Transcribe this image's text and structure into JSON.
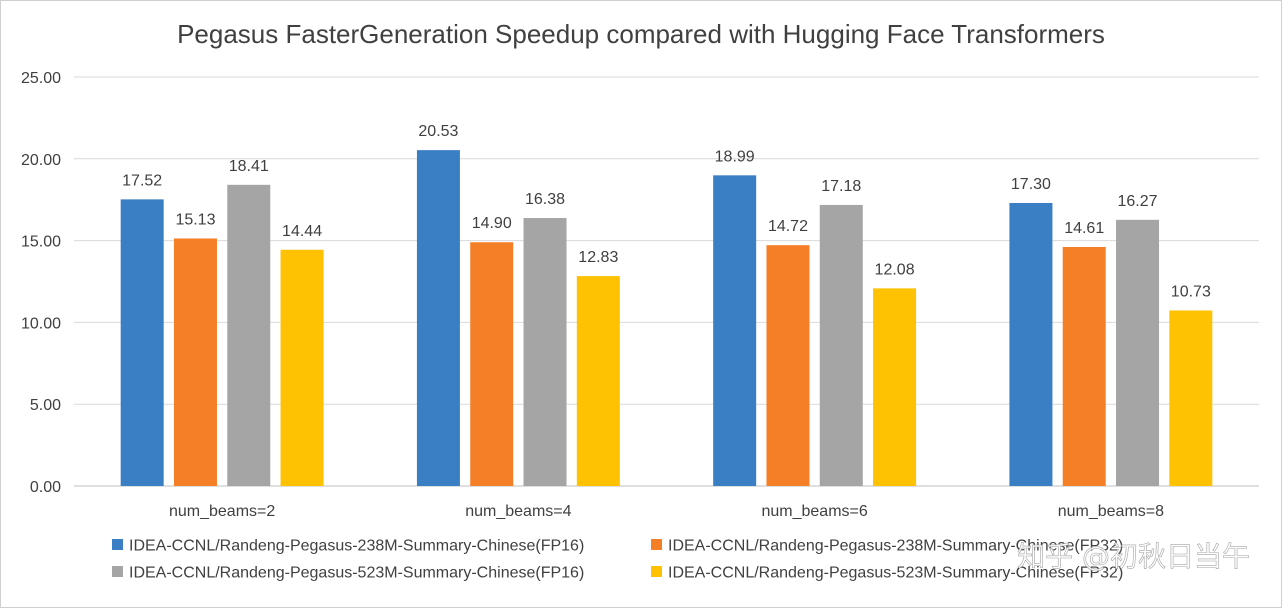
{
  "chart_data": {
    "type": "bar",
    "title": "Pegasus FasterGeneration Speedup compared with Hugging Face Transformers",
    "xlabel": "",
    "ylabel": "",
    "ylim": [
      0,
      25
    ],
    "yticks": [
      "0.00",
      "5.00",
      "10.00",
      "15.00",
      "20.00",
      "25.00"
    ],
    "grid": true,
    "legend_position": "bottom",
    "categories": [
      "num_beams=2",
      "num_beams=4",
      "num_beams=6",
      "num_beams=8"
    ],
    "series": [
      {
        "name": "IDEA-CCNL/Randeng-Pegasus-238M-Summary-Chinese(FP16)",
        "color": "#3a7fc4",
        "values": [
          17.52,
          20.53,
          18.99,
          17.3
        ],
        "labels": [
          "17.52",
          "20.53",
          "18.99",
          "17.30"
        ]
      },
      {
        "name": "IDEA-CCNL/Randeng-Pegasus-238M-Summary-Chinese(FP32)",
        "color": "#f57f26",
        "values": [
          15.13,
          14.9,
          14.72,
          14.61
        ],
        "labels": [
          "15.13",
          "14.90",
          "14.72",
          "14.61"
        ]
      },
      {
        "name": "IDEA-CCNL/Randeng-Pegasus-523M-Summary-Chinese(FP16)",
        "color": "#a5a5a5",
        "values": [
          18.41,
          16.38,
          17.18,
          16.27
        ],
        "labels": [
          "18.41",
          "16.38",
          "17.18",
          "16.27"
        ]
      },
      {
        "name": "IDEA-CCNL/Randeng-Pegasus-523M-Summary-Chinese(FP32)",
        "color": "#fec202",
        "values": [
          14.44,
          12.83,
          12.08,
          10.73
        ],
        "labels": [
          "14.44",
          "12.83",
          "12.08",
          "10.73"
        ]
      }
    ]
  },
  "watermark": {
    "text": "知乎 @初秋日当午"
  }
}
